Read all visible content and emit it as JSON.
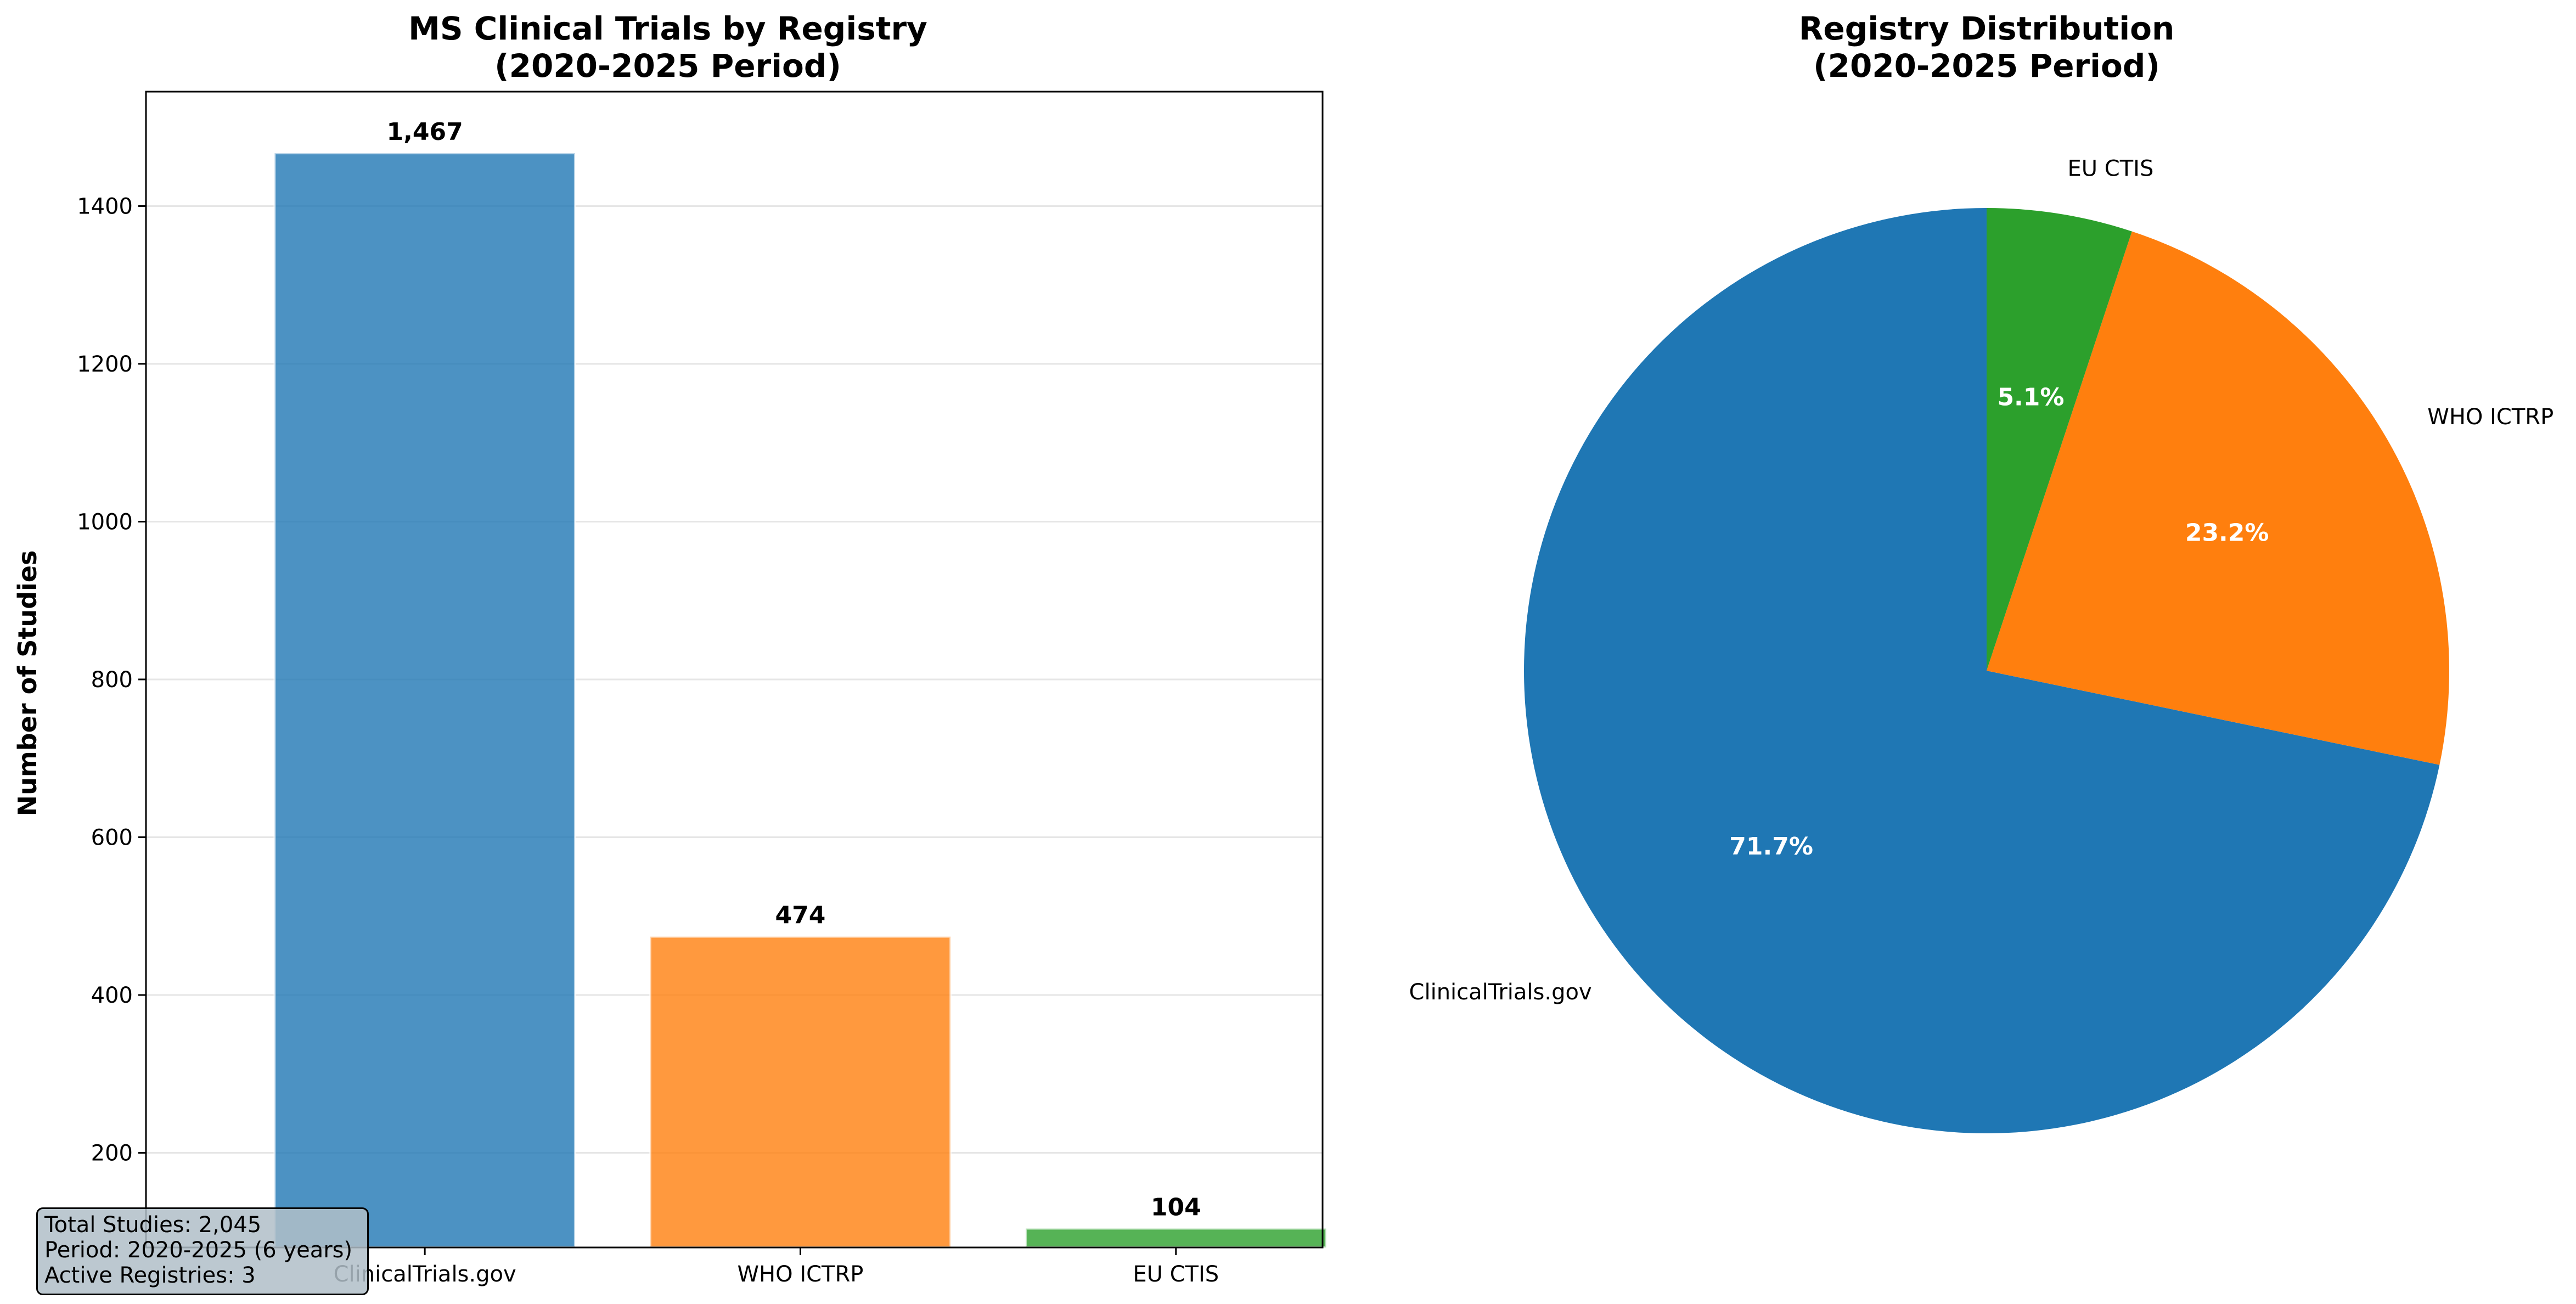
{
  "chart_data": [
    {
      "type": "bar",
      "title": "MS Clinical Trials by Registry",
      "subtitle": "(2020-2025 Period)",
      "xlabel": "",
      "ylabel": "Number of Studies",
      "categories": [
        "ClinicalTrials.gov",
        "WHO ICTRP",
        "EU CTIS"
      ],
      "values": [
        1467,
        474,
        104
      ],
      "value_labels": [
        "1,467",
        "474",
        "104"
      ],
      "colors": [
        "#1f77b4",
        "#ff7f0e",
        "#2ca02c"
      ],
      "ylim": [
        80,
        1545
      ],
      "yticks": [
        200,
        400,
        600,
        800,
        1000,
        1200,
        1400
      ],
      "grid": "y",
      "annotation": {
        "lines": [
          "Total Studies: 2,045",
          "Period: 2020-2025 (6 years)",
          "Active Registries: 3"
        ]
      }
    },
    {
      "type": "pie",
      "title": "Registry Distribution",
      "subtitle": "(2020-2025 Period)",
      "labels": [
        "ClinicalTrials.gov",
        "WHO ICTRP",
        "EU CTIS"
      ],
      "values": [
        1467,
        474,
        104
      ],
      "percent_labels": [
        "71.7%",
        "23.2%",
        "5.1%"
      ],
      "colors": [
        "#1f77b4",
        "#ff7f0e",
        "#2ca02c"
      ],
      "start_angle": 90,
      "direction": "counterclockwise"
    }
  ]
}
